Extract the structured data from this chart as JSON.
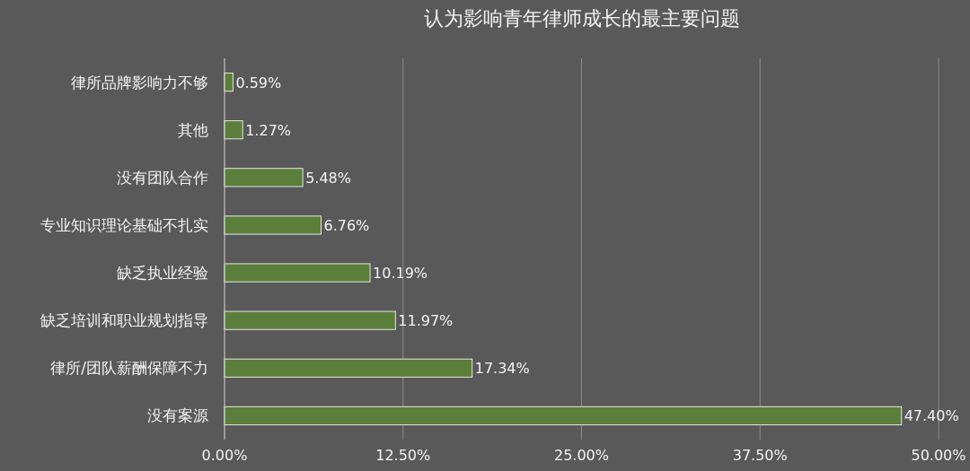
{
  "chart_data": {
    "type": "bar",
    "orientation": "horizontal",
    "title": "认为影响青年律师成长的最主要问题",
    "categories": [
      "律所品牌影响力不够",
      "其他",
      "没有团队合作",
      "专业知识理论基础不扎实",
      "缺乏执业经验",
      "缺乏培训和职业规划指导",
      "律所/团队薪酬保障不力",
      "没有案源"
    ],
    "values": [
      0.59,
      1.27,
      5.48,
      6.76,
      10.19,
      11.97,
      17.34,
      47.4
    ],
    "value_labels": [
      "0.59%",
      "1.27%",
      "5.48%",
      "6.76%",
      "10.19%",
      "11.97%",
      "17.34%",
      "47.40%"
    ],
    "color": "#5b7f3a",
    "xlim": [
      0,
      50
    ],
    "xticks": [
      {
        "value": 0,
        "label": "0.00%"
      },
      {
        "value": 12.5,
        "label": "12.50%"
      },
      {
        "value": 25,
        "label": "25.00%"
      },
      {
        "value": 37.5,
        "label": "37.50%"
      },
      {
        "value": 50,
        "label": "50.00%"
      }
    ],
    "grid": "x"
  }
}
